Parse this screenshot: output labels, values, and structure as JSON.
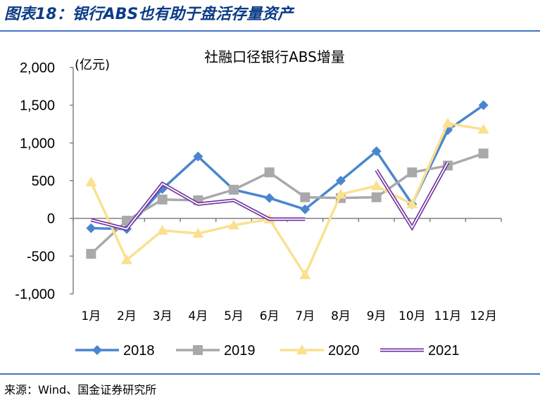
{
  "figure": {
    "title": "图表18：银行ABS也有助于盘活存量资产",
    "source": "来源：Wind、国金证券研究所"
  },
  "chart_data": {
    "type": "line",
    "title": "社融口径银行ABS增量",
    "ylabel": "(亿元)",
    "ylim": [
      -1000,
      2000
    ],
    "yticks": [
      -1000,
      -500,
      0,
      500,
      1000,
      1500,
      2000
    ],
    "ytick_labels": [
      "-1,000",
      "-500",
      "0",
      "500",
      "1,000",
      "1,500",
      "2,000"
    ],
    "categories": [
      "1月",
      "2月",
      "3月",
      "4月",
      "5月",
      "6月",
      "7月",
      "8月",
      "9月",
      "10月",
      "11月",
      "12月"
    ],
    "legend_position": "bottom",
    "series": [
      {
        "name": "2018",
        "color": "#4a86cf",
        "marker": "diamond",
        "values": [
          -130,
          -140,
          390,
          820,
          380,
          270,
          120,
          500,
          890,
          190,
          1170,
          1500
        ]
      },
      {
        "name": "2019",
        "color": "#a9a9a9",
        "marker": "square",
        "values": [
          -470,
          -30,
          250,
          240,
          380,
          610,
          280,
          270,
          280,
          610,
          700,
          860
        ]
      },
      {
        "name": "2020",
        "color": "#fbe08f",
        "marker": "triangle",
        "values": [
          480,
          -550,
          -160,
          -200,
          -90,
          -10,
          -750,
          320,
          430,
          190,
          1260,
          1180
        ]
      },
      {
        "name": "2021",
        "color": "#7030a0",
        "marker": "none",
        "style": "double",
        "values": [
          -20,
          -140,
          460,
          190,
          240,
          -10,
          -10,
          null,
          640,
          -120,
          740,
          null
        ]
      }
    ]
  }
}
